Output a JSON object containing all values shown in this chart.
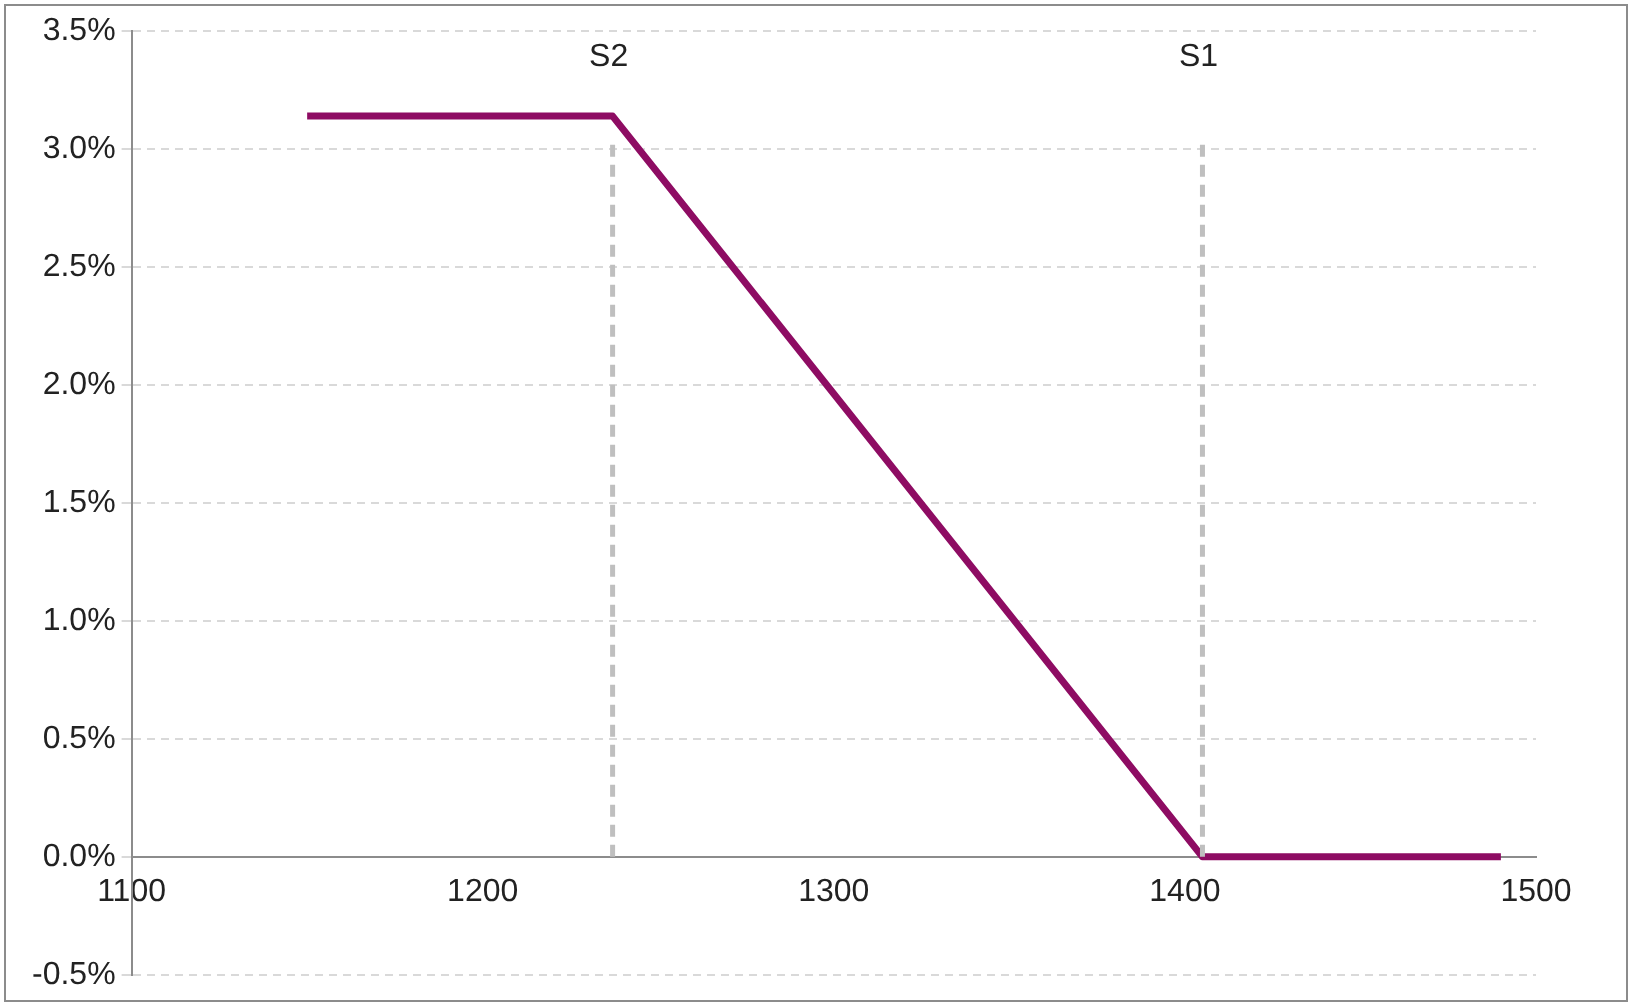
{
  "chart_data": {
    "type": "line",
    "x": [
      1150,
      1237,
      1405,
      1490
    ],
    "series": [
      {
        "color": "#8e0c63",
        "values": [
          3.14,
          3.14,
          0,
          0
        ]
      }
    ],
    "xlim": [
      1100,
      1500
    ],
    "xticks": [
      1100,
      1200,
      1300,
      1400,
      1500
    ],
    "ylim": [
      -0.5,
      3.5
    ],
    "yticks": [
      {
        "value": -0.5,
        "label": "-0.5%"
      },
      {
        "value": 0,
        "label": "0.0%"
      },
      {
        "value": 0.5,
        "label": "0.5%"
      },
      {
        "value": 1,
        "label": "1.0%"
      },
      {
        "value": 1.5,
        "label": "1.5%"
      },
      {
        "value": 2,
        "label": "2.0%"
      },
      {
        "value": 2.5,
        "label": "2.5%"
      },
      {
        "value": 3,
        "label": "3.0%"
      },
      {
        "value": 3.5,
        "label": "3.5%"
      }
    ],
    "ref_lines": [
      {
        "axis": "x",
        "value": 1237,
        "label": "S2",
        "color": "#bfbfbf",
        "line_style": "dashed"
      },
      {
        "axis": "x",
        "value": 1405,
        "label": "S1",
        "color": "#bfbfbf",
        "line_style": "dashed"
      }
    ],
    "grid": "y",
    "legend": false,
    "marker": "none",
    "line_style": "solid"
  }
}
